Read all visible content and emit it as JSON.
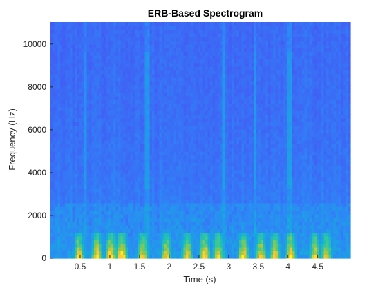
{
  "chart_data": {
    "type": "heatmap",
    "title": "ERB-Based Spectrogram",
    "xlabel": "Time (s)",
    "ylabel": "Frequency (Hz)",
    "xlim": [
      0,
      5.05
    ],
    "ylim": [
      0,
      11025
    ],
    "x_ticks": [
      0.5,
      1,
      1.5,
      2,
      2.5,
      3,
      3.5,
      4,
      4.5
    ],
    "x_tick_labels": [
      "0.5",
      "1",
      "1.5",
      "2",
      "2.5",
      "3",
      "3.5",
      "4",
      "4.5"
    ],
    "y_ticks": [
      0,
      2000,
      4000,
      6000,
      8000,
      10000
    ],
    "y_tick_labels": [
      "0",
      "2000",
      "4000",
      "6000",
      "8000",
      "10000"
    ],
    "colormap": "parula",
    "grid": false,
    "low_frequency_energy": {
      "max_frequency_hz": 900,
      "bursts": [
        {
          "t": 0.48,
          "level": 0.78
        },
        {
          "t": 0.78,
          "level": 0.82
        },
        {
          "t": 1.02,
          "level": 0.9
        },
        {
          "t": 1.2,
          "level": 0.93
        },
        {
          "t": 1.55,
          "level": 0.8
        },
        {
          "t": 1.95,
          "level": 0.82
        },
        {
          "t": 2.3,
          "level": 0.8
        },
        {
          "t": 2.6,
          "level": 0.85
        },
        {
          "t": 2.82,
          "level": 0.8
        },
        {
          "t": 3.25,
          "level": 0.82
        },
        {
          "t": 3.55,
          "level": 0.8
        },
        {
          "t": 3.78,
          "level": 0.82
        },
        {
          "t": 4.05,
          "level": 0.8
        },
        {
          "t": 4.45,
          "level": 0.78
        },
        {
          "t": 4.65,
          "level": 0.75
        }
      ]
    },
    "broadband_transients": [
      {
        "t": 0.6,
        "f_low_hz": 3300,
        "f_high_hz": 9700
      },
      {
        "t": 1.63,
        "f_low_hz": 3300,
        "f_high_hz": 9700
      },
      {
        "t": 2.9,
        "f_low_hz": 3300,
        "f_high_hz": 9700
      },
      {
        "t": 3.43,
        "f_low_hz": 3300,
        "f_high_hz": 9700
      },
      {
        "t": 4.03,
        "f_low_hz": 3300,
        "f_high_hz": 9700
      }
    ]
  }
}
